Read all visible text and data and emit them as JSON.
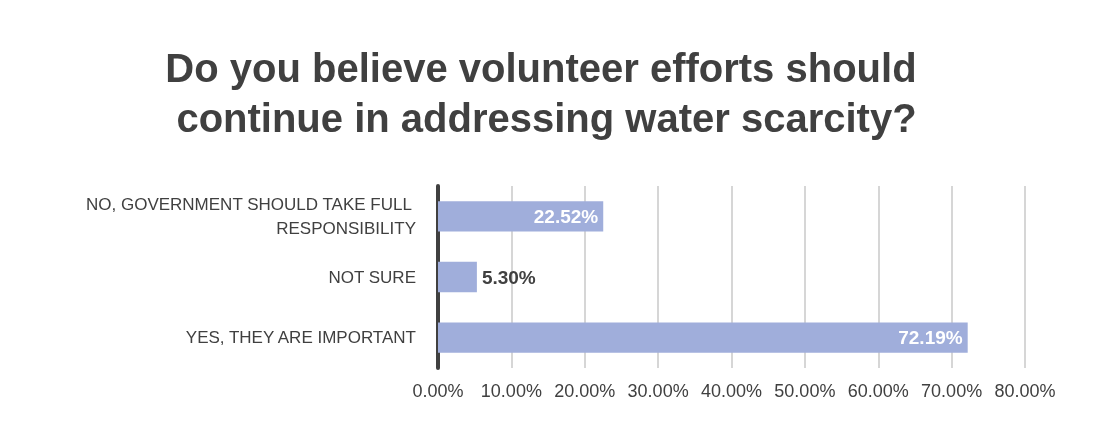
{
  "chart_data": {
    "type": "bar",
    "orientation": "horizontal",
    "title": "Do you believe volunteer efforts should continue in addressing water scarcity?",
    "categories": [
      "NO, GOVERNMENT SHOULD TAKE FULL RESPONSIBILITY",
      "NOT SURE",
      "YES, THEY ARE IMPORTANT"
    ],
    "values": [
      22.52,
      5.3,
      72.19
    ],
    "value_labels": [
      "22.52%",
      "5.30%",
      "72.19%"
    ],
    "color": "#a0aedb",
    "xlim": [
      0,
      80
    ],
    "xticks": [
      {
        "value": 0,
        "label": "0.00%"
      },
      {
        "value": 10,
        "label": "10.00%"
      },
      {
        "value": 20,
        "label": "20.00%"
      },
      {
        "value": 30,
        "label": "30.00%"
      },
      {
        "value": 40,
        "label": "40.00%"
      },
      {
        "value": 50,
        "label": "50.00%"
      },
      {
        "value": 60,
        "label": "60.00%"
      },
      {
        "value": 70,
        "label": "70.00%"
      },
      {
        "value": 80,
        "label": "80.00%"
      }
    ],
    "grid": "x"
  }
}
